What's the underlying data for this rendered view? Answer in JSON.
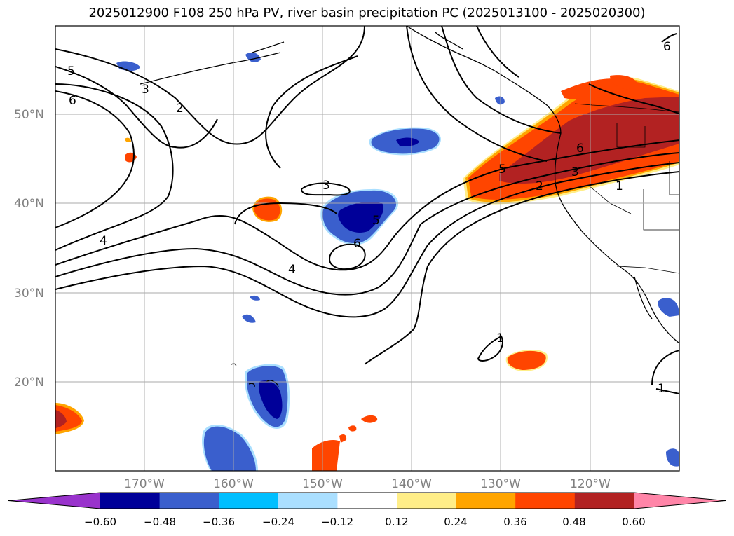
{
  "title": "2025012900 F108 250 hPa PV, river basin precipitation PC (2025013100 - 2025020300)",
  "map": {
    "lat_labels": [
      "50°N",
      "40°N",
      "30°N",
      "20°N"
    ],
    "lon_labels": [
      "170°W",
      "160°W",
      "150°W",
      "140°W",
      "130°W",
      "120°W"
    ]
  },
  "contour_labels": [
    "5",
    "6",
    "3",
    "2",
    "3",
    "4",
    "4",
    "5",
    "6",
    "1",
    "1",
    "5",
    "6",
    "3",
    "2",
    "1",
    "6"
  ],
  "colorbar": {
    "ticks": [
      "−0.60",
      "−0.48",
      "−0.36",
      "−0.24",
      "−0.12",
      "0.12",
      "0.24",
      "0.36",
      "0.48",
      "0.60"
    ],
    "colors": [
      "#9933cc",
      "#000099",
      "#3a5fcd",
      "#00bfff",
      "#aadfff",
      "#ffffff",
      "#ffee88",
      "#ffa500",
      "#ff4500",
      "#b22222",
      "#ff85a8"
    ]
  }
}
